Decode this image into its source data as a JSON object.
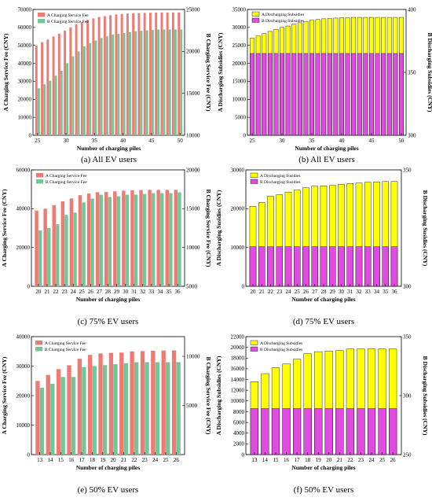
{
  "colors": {
    "service_a": "#ef7a74",
    "service_b": "#74c597",
    "subsidy_a": "#ffff00",
    "subsidy_b": "#e14be1"
  },
  "chart_data": [
    {
      "id": "a",
      "type": "bar",
      "caption": "(a) All EV users",
      "xlabel": "Number of charging piles",
      "ylabel": "A Charging Service Fee (CNY)",
      "ylabel2": "B Charging Service Fee (CNY)",
      "x": [
        25,
        26,
        27,
        28,
        29,
        30,
        31,
        32,
        33,
        34,
        35,
        36,
        37,
        38,
        39,
        40,
        41,
        42,
        43,
        44,
        45,
        46,
        47,
        48,
        49,
        50
      ],
      "xticks": [
        25,
        30,
        35,
        40,
        45,
        50
      ],
      "ylim": [
        0,
        70000
      ],
      "yticks": [
        0,
        10000,
        20000,
        30000,
        40000,
        50000,
        60000,
        70000
      ],
      "ylim2": [
        10000,
        25000
      ],
      "yticks2": [
        10000,
        15000,
        20000,
        25000
      ],
      "series": [
        {
          "name": "A Charging Service Fee",
          "axis": "left",
          "color": "#ef7a74",
          "values": [
            50000,
            51800,
            53300,
            55000,
            56500,
            58200,
            60000,
            61800,
            63000,
            64200,
            65000,
            65800,
            66300,
            66800,
            67200,
            67500,
            67700,
            67900,
            68000,
            68100,
            68200,
            68250,
            68300,
            68300,
            68300,
            68300
          ]
        },
        {
          "name": "B Charging Service Fee",
          "axis": "right",
          "color": "#74c597",
          "values": [
            15600,
            16100,
            16500,
            17100,
            17700,
            18600,
            19400,
            20000,
            20600,
            21000,
            21300,
            21600,
            21800,
            22000,
            22100,
            22200,
            22300,
            22400,
            22450,
            22500,
            22550,
            22600,
            22600,
            22600,
            22600,
            22600
          ]
        }
      ]
    },
    {
      "id": "b",
      "type": "bar",
      "caption": "(b) All EV users",
      "xlabel": "Number of charging piles",
      "ylabel": "A Discharging Subsidies (CNY)",
      "ylabel2": "B Discharging Subsidies (CNY)",
      "x": [
        25,
        26,
        27,
        28,
        29,
        30,
        31,
        32,
        33,
        34,
        35,
        36,
        37,
        38,
        39,
        40,
        41,
        42,
        43,
        44,
        45,
        46,
        47,
        48,
        49,
        50
      ],
      "xticks": [
        25,
        30,
        35,
        40,
        45,
        50
      ],
      "ylim": [
        0,
        35000
      ],
      "yticks": [
        0,
        5000,
        10000,
        15000,
        20000,
        25000,
        30000,
        35000
      ],
      "ylim2": [
        300,
        400
      ],
      "yticks2": [
        300,
        350,
        400
      ],
      "series": [
        {
          "name": "A Discharging Subsidies",
          "axis": "left",
          "color": "#ffff00",
          "values": [
            27000,
            27600,
            28300,
            28900,
            29500,
            30000,
            30400,
            30900,
            31300,
            31700,
            32000,
            32200,
            32400,
            32500,
            32600,
            32700,
            32700,
            32800,
            32800,
            32800,
            32800,
            32800,
            32800,
            32800,
            32800,
            32800
          ]
        },
        {
          "name": "B Discharging Subsidies",
          "axis": "right",
          "color": "#e14be1",
          "values": [
            365,
            365,
            365,
            365,
            365,
            365,
            365,
            365,
            365,
            365,
            365,
            365,
            365,
            365,
            365,
            365,
            365,
            365,
            365,
            365,
            365,
            365,
            365,
            365,
            365,
            365
          ]
        }
      ]
    },
    {
      "id": "c",
      "type": "bar",
      "caption": "(c) 75% EV users",
      "xlabel": "Number of charging piles",
      "ylabel": "A Charging Service Fee (CNY)",
      "ylabel2": "B Charging Service Fee (CNY)",
      "x": [
        20,
        21,
        22,
        23,
        24,
        25,
        26,
        27,
        28,
        29,
        30,
        31,
        32,
        33,
        34,
        35,
        36
      ],
      "xticks": [
        20,
        21,
        22,
        23,
        24,
        25,
        26,
        27,
        28,
        29,
        30,
        31,
        32,
        33,
        34,
        35,
        36
      ],
      "ylim": [
        0,
        60000
      ],
      "yticks": [
        0,
        20000,
        40000,
        60000
      ],
      "ylim2": [
        5000,
        20000
      ],
      "yticks2": [
        5000,
        10000,
        15000,
        20000
      ],
      "series": [
        {
          "name": "A Charging Service Fee",
          "axis": "left",
          "color": "#ef7a74",
          "values": [
            39000,
            40000,
            41800,
            43800,
            45300,
            47000,
            47800,
            48500,
            48600,
            49000,
            49300,
            49500,
            49600,
            49700,
            49700,
            49700,
            49700
          ]
        },
        {
          "name": "B Charging Service Fee",
          "axis": "right",
          "color": "#74c597",
          "values": [
            12200,
            12500,
            13000,
            14200,
            14500,
            15800,
            16300,
            16800,
            16500,
            16600,
            16800,
            16800,
            16900,
            17000,
            17000,
            17000,
            17100
          ]
        }
      ]
    },
    {
      "id": "d",
      "type": "bar",
      "caption": "(d) 75% EV users",
      "xlabel": "Number of charging piles",
      "ylabel": "A Discharging Susidies (CNY)",
      "ylabel2": "B Discharging Susidies (CNY)",
      "x": [
        20,
        21,
        22,
        23,
        24,
        25,
        26,
        27,
        28,
        29,
        30,
        31,
        32,
        33,
        34,
        35,
        36
      ],
      "xticks": [
        20,
        21,
        22,
        23,
        24,
        25,
        26,
        27,
        28,
        29,
        30,
        31,
        32,
        33,
        34,
        35,
        36
      ],
      "ylim": [
        0,
        30000
      ],
      "yticks": [
        0,
        10000,
        20000,
        30000
      ],
      "ylim2": [
        300,
        350
      ],
      "yticks2": [
        300,
        350
      ],
      "series": [
        {
          "name": "A Discharging Susidies",
          "axis": "left",
          "color": "#ffff00",
          "values": [
            20600,
            21600,
            23200,
            23600,
            24300,
            24800,
            25400,
            25800,
            25900,
            26000,
            26300,
            26500,
            26600,
            26800,
            26900,
            27000,
            27000
          ]
        },
        {
          "name": "B Discharging Susidies",
          "axis": "right",
          "color": "#e14be1",
          "values": [
            317,
            317,
            317,
            317,
            317,
            317,
            317,
            317,
            317,
            317,
            317,
            317,
            317,
            317,
            317,
            317,
            317
          ]
        }
      ]
    },
    {
      "id": "e",
      "type": "bar",
      "caption": "(e) 50% EV users",
      "xlabel": "Number of charging piles",
      "ylabel": "A Charging Service Fee (CNY)",
      "ylabel2": "B Charging Service Fee (CNY)",
      "x": [
        13,
        14,
        15,
        16,
        17,
        18,
        19,
        20,
        21,
        22,
        23,
        24,
        25,
        26
      ],
      "xticks": [
        13,
        14,
        15,
        16,
        17,
        18,
        19,
        20,
        21,
        22,
        23,
        24,
        25,
        26
      ],
      "ylim": [
        0,
        40000
      ],
      "yticks": [
        0,
        10000,
        20000,
        30000,
        40000
      ],
      "ylim2": [
        0,
        12000
      ],
      "yticks2": [
        5000,
        10000
      ],
      "series": [
        {
          "name": "A Charging Service Fee",
          "axis": "left",
          "color": "#ef7a74",
          "values": [
            25000,
            27000,
            29000,
            30300,
            32500,
            33800,
            34300,
            34500,
            34600,
            35000,
            35100,
            35200,
            35300,
            35300
          ]
        },
        {
          "name": "B Charging Service Fee",
          "axis": "right",
          "color": "#74c597",
          "values": [
            6800,
            7200,
            7900,
            7900,
            8900,
            9000,
            9100,
            9200,
            9300,
            9400,
            9400,
            9400,
            9400,
            9400
          ]
        }
      ]
    },
    {
      "id": "f",
      "type": "bar",
      "caption": "(f) 50% EV users",
      "xlabel": "Number of charging piles",
      "ylabel": "A Discharging Subsidies (CNY)",
      "ylabel2": "B Discharging Subsidies (CNY)",
      "x": [
        13,
        14,
        15,
        16,
        17,
        18,
        19,
        20,
        21,
        22,
        23,
        24,
        25,
        26
      ],
      "xticks": [
        13,
        14,
        15,
        16,
        17,
        18,
        19,
        20,
        21,
        22,
        23,
        24,
        25,
        26
      ],
      "ylim": [
        0,
        22000
      ],
      "yticks": [
        0,
        2000,
        4000,
        6000,
        8000,
        10000,
        12000,
        14000,
        16000,
        18000,
        20000,
        22000
      ],
      "ylim2": [
        250,
        350
      ],
      "yticks2": [
        250,
        300,
        350
      ],
      "series": [
        {
          "name": "A Discharging Subsidies",
          "axis": "left",
          "color": "#ffff00",
          "values": [
            13600,
            15100,
            16200,
            16900,
            17800,
            18800,
            19200,
            19300,
            19400,
            19700,
            19700,
            19700,
            19700,
            19700
          ]
        },
        {
          "name": "B Discharging Subsidies",
          "axis": "right",
          "color": "#e14be1",
          "values": [
            289,
            289,
            289,
            289,
            289,
            289,
            289,
            289,
            289,
            289,
            289,
            289,
            289,
            289
          ]
        }
      ]
    }
  ]
}
